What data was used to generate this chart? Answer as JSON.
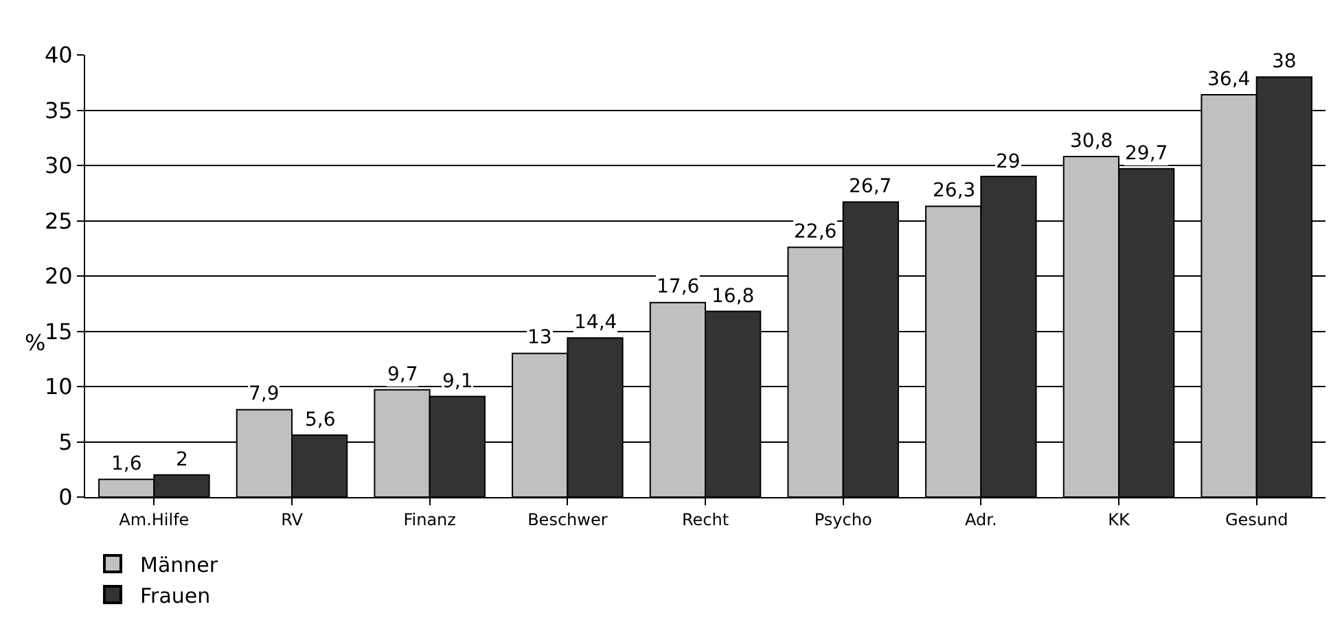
{
  "chart_data": {
    "type": "bar",
    "ylabel": "%",
    "categories": [
      "Am.Hilfe",
      "RV",
      "Finanz",
      "Beschwer",
      "Recht",
      "Psycho",
      "Adr.",
      "KK",
      "Gesund"
    ],
    "series": [
      {
        "name": "Männer",
        "color": "#c0c0c0",
        "values": [
          1.6,
          7.9,
          9.7,
          13,
          17.6,
          22.6,
          26.3,
          30.8,
          36.4
        ],
        "value_labels": [
          "1,6",
          "7,9",
          "9,7",
          "13",
          "17,6",
          "22,6",
          "26,3",
          "30,8",
          "36,4"
        ]
      },
      {
        "name": "Frauen",
        "color": "#333333",
        "values": [
          2,
          5.6,
          9.1,
          14.4,
          16.8,
          26.7,
          29,
          29.7,
          38
        ],
        "value_labels": [
          "2",
          "5,6",
          "9,1",
          "14,4",
          "16,8",
          "26,7",
          "29",
          "29,7",
          "38"
        ]
      }
    ],
    "ylim": [
      0,
      40
    ],
    "yticks": [
      0,
      5,
      10,
      15,
      20,
      25,
      30,
      35,
      40
    ],
    "grid": "y",
    "legend": "bottom"
  }
}
